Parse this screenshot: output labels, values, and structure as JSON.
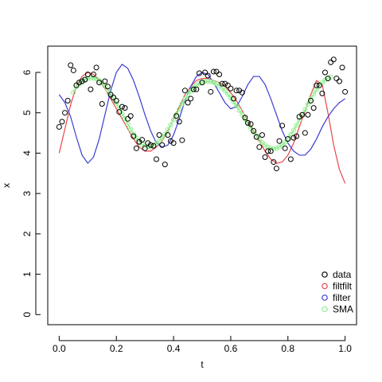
{
  "chart_data": {
    "type": "scatter",
    "xlabel": "t",
    "ylabel": "x",
    "xlim": [
      -0.04,
      1.04
    ],
    "ylim": [
      -0.25,
      6.65
    ],
    "xticks": [
      0.0,
      0.2,
      0.4,
      0.6,
      0.8,
      1.0
    ],
    "xtick_labels": [
      "0.0",
      "0.2",
      "0.4",
      "0.6",
      "0.8",
      "1.0"
    ],
    "yticks": [
      0,
      1,
      2,
      3,
      4,
      5,
      6
    ],
    "ytick_labels": [
      "0",
      "1",
      "2",
      "3",
      "4",
      "5",
      "6"
    ],
    "grid": false,
    "legend_position": "bottom-right",
    "legend": [
      "data",
      "filtfilt",
      "filter",
      "SMA"
    ],
    "colors": {
      "data": "#000000",
      "filtfilt": "#e8464b",
      "filter": "#3b3bd4",
      "SMA": "#90ee90"
    },
    "series": [
      {
        "name": "data",
        "kind": "points",
        "x": [
          0.0,
          0.01,
          0.02,
          0.03,
          0.04,
          0.05,
          0.06,
          0.07,
          0.08,
          0.09,
          0.1,
          0.11,
          0.12,
          0.13,
          0.14,
          0.15,
          0.16,
          0.17,
          0.18,
          0.19,
          0.2,
          0.21,
          0.22,
          0.23,
          0.24,
          0.25,
          0.26,
          0.27,
          0.28,
          0.29,
          0.3,
          0.31,
          0.32,
          0.33,
          0.34,
          0.35,
          0.36,
          0.37,
          0.38,
          0.39,
          0.4,
          0.41,
          0.42,
          0.43,
          0.44,
          0.45,
          0.46,
          0.47,
          0.48,
          0.49,
          0.5,
          0.51,
          0.52,
          0.53,
          0.54,
          0.55,
          0.56,
          0.57,
          0.58,
          0.59,
          0.6,
          0.61,
          0.62,
          0.63,
          0.64,
          0.65,
          0.66,
          0.67,
          0.68,
          0.69,
          0.7,
          0.71,
          0.72,
          0.73,
          0.74,
          0.75,
          0.76,
          0.77,
          0.78,
          0.79,
          0.8,
          0.81,
          0.82,
          0.83,
          0.84,
          0.85,
          0.86,
          0.87,
          0.88,
          0.89,
          0.9,
          0.91,
          0.92,
          0.93,
          0.94,
          0.95,
          0.96,
          0.97,
          0.98,
          0.99,
          1.0
        ],
        "y": [
          4.65,
          4.78,
          5.0,
          5.3,
          6.18,
          6.05,
          5.68,
          5.75,
          5.78,
          5.82,
          5.95,
          5.58,
          5.95,
          6.12,
          5.75,
          5.22,
          5.78,
          5.65,
          5.45,
          5.38,
          5.3,
          5.02,
          5.15,
          5.12,
          4.85,
          4.92,
          4.42,
          4.12,
          4.28,
          4.33,
          4.12,
          4.25,
          4.2,
          4.18,
          3.85,
          4.45,
          4.2,
          3.72,
          4.45,
          4.3,
          4.25,
          4.92,
          4.78,
          4.32,
          5.55,
          5.25,
          5.35,
          5.58,
          5.58,
          5.98,
          5.75,
          6.0,
          5.92,
          5.52,
          6.02,
          6.02,
          5.95,
          5.72,
          5.72,
          5.68,
          5.6,
          5.35,
          5.55,
          5.55,
          5.5,
          4.88,
          4.75,
          4.72,
          4.55,
          4.4,
          4.15,
          4.45,
          3.9,
          4.05,
          4.05,
          3.78,
          3.62,
          4.3,
          4.68,
          4.12,
          4.35,
          3.85,
          4.38,
          4.42,
          4.9,
          4.95,
          4.5,
          4.95,
          5.3,
          5.12,
          5.68,
          5.68,
          5.48,
          6.0,
          5.85,
          6.25,
          6.32,
          5.85,
          5.78,
          6.12,
          5.52
        ]
      },
      {
        "name": "filtfilt",
        "kind": "line",
        "x": [
          0.0,
          0.02,
          0.04,
          0.06,
          0.08,
          0.1,
          0.12,
          0.14,
          0.16,
          0.18,
          0.2,
          0.22,
          0.24,
          0.26,
          0.28,
          0.3,
          0.32,
          0.34,
          0.36,
          0.38,
          0.4,
          0.42,
          0.44,
          0.46,
          0.48,
          0.5,
          0.52,
          0.54,
          0.56,
          0.58,
          0.6,
          0.62,
          0.64,
          0.66,
          0.68,
          0.7,
          0.72,
          0.74,
          0.76,
          0.78,
          0.8,
          0.82,
          0.84,
          0.86,
          0.88,
          0.9,
          0.92,
          0.94,
          0.96,
          0.98,
          1.0
        ],
        "y": [
          4.0,
          4.6,
          5.2,
          5.65,
          5.9,
          6.0,
          5.95,
          5.8,
          5.6,
          5.35,
          5.1,
          4.85,
          4.6,
          4.35,
          4.15,
          4.05,
          4.05,
          4.15,
          4.3,
          4.55,
          4.85,
          5.15,
          5.45,
          5.65,
          5.8,
          5.85,
          5.85,
          5.8,
          5.75,
          5.65,
          5.5,
          5.3,
          5.05,
          4.8,
          4.55,
          4.3,
          4.05,
          3.85,
          3.75,
          3.78,
          3.95,
          4.25,
          4.65,
          5.05,
          5.45,
          5.8,
          5.7,
          5.0,
          4.2,
          3.6,
          3.25
        ]
      },
      {
        "name": "filter",
        "kind": "line",
        "x": [
          0.0,
          0.02,
          0.04,
          0.06,
          0.08,
          0.1,
          0.12,
          0.14,
          0.16,
          0.18,
          0.2,
          0.22,
          0.24,
          0.26,
          0.28,
          0.3,
          0.32,
          0.34,
          0.36,
          0.38,
          0.4,
          0.42,
          0.44,
          0.46,
          0.48,
          0.5,
          0.52,
          0.54,
          0.56,
          0.58,
          0.6,
          0.62,
          0.64,
          0.66,
          0.68,
          0.7,
          0.72,
          0.74,
          0.76,
          0.78,
          0.8,
          0.82,
          0.84,
          0.86,
          0.88,
          0.9,
          0.92,
          0.94,
          0.96,
          0.98,
          1.0
        ],
        "y": [
          5.45,
          5.25,
          4.9,
          4.4,
          3.95,
          3.75,
          3.9,
          4.35,
          4.95,
          5.55,
          6.0,
          6.2,
          6.1,
          5.8,
          5.4,
          4.95,
          4.55,
          4.25,
          4.15,
          4.2,
          4.45,
          4.85,
          5.3,
          5.65,
          5.9,
          6.0,
          5.95,
          5.75,
          5.5,
          5.25,
          5.1,
          5.15,
          5.4,
          5.7,
          5.9,
          5.9,
          5.7,
          5.35,
          4.95,
          4.55,
          4.25,
          4.05,
          3.95,
          3.95,
          4.1,
          4.35,
          4.65,
          4.9,
          5.1,
          5.25,
          5.35
        ]
      },
      {
        "name": "SMA",
        "kind": "points-line",
        "x": [
          0.05,
          0.06,
          0.07,
          0.08,
          0.09,
          0.1,
          0.11,
          0.12,
          0.13,
          0.14,
          0.15,
          0.16,
          0.17,
          0.18,
          0.19,
          0.2,
          0.21,
          0.22,
          0.23,
          0.24,
          0.25,
          0.26,
          0.27,
          0.28,
          0.29,
          0.3,
          0.31,
          0.32,
          0.33,
          0.34,
          0.35,
          0.36,
          0.37,
          0.38,
          0.39,
          0.4,
          0.41,
          0.42,
          0.43,
          0.44,
          0.45,
          0.46,
          0.47,
          0.48,
          0.49,
          0.5,
          0.51,
          0.52,
          0.53,
          0.54,
          0.55,
          0.56,
          0.57,
          0.58,
          0.59,
          0.6,
          0.61,
          0.62,
          0.63,
          0.64,
          0.65,
          0.66,
          0.67,
          0.68,
          0.69,
          0.7,
          0.71,
          0.72,
          0.73,
          0.74,
          0.75,
          0.76,
          0.77,
          0.78,
          0.79,
          0.8,
          0.81,
          0.82,
          0.83,
          0.84,
          0.85,
          0.86,
          0.87,
          0.88,
          0.89,
          0.9,
          0.91,
          0.92,
          0.93,
          0.94,
          0.95
        ],
        "y": [
          5.5,
          5.65,
          5.72,
          5.78,
          5.83,
          5.85,
          5.86,
          5.86,
          5.84,
          5.8,
          5.74,
          5.66,
          5.57,
          5.47,
          5.36,
          5.24,
          5.11,
          4.98,
          4.85,
          4.72,
          4.59,
          4.47,
          4.37,
          4.28,
          4.22,
          4.18,
          4.16,
          4.17,
          4.19,
          4.24,
          4.3,
          4.38,
          4.47,
          4.58,
          4.7,
          4.83,
          4.96,
          5.09,
          5.22,
          5.34,
          5.45,
          5.54,
          5.62,
          5.68,
          5.73,
          5.76,
          5.78,
          5.78,
          5.77,
          5.75,
          5.72,
          5.67,
          5.61,
          5.54,
          5.46,
          5.37,
          5.27,
          5.17,
          5.06,
          4.95,
          4.84,
          4.73,
          4.62,
          4.52,
          4.43,
          4.34,
          4.26,
          4.2,
          4.15,
          4.12,
          4.11,
          4.12,
          4.15,
          4.2,
          4.27,
          4.36,
          4.46,
          4.57,
          4.69,
          4.82,
          4.95,
          5.08,
          5.21,
          5.34,
          5.46,
          5.57,
          5.67,
          5.75,
          5.81,
          5.85,
          5.88
        ]
      }
    ]
  }
}
